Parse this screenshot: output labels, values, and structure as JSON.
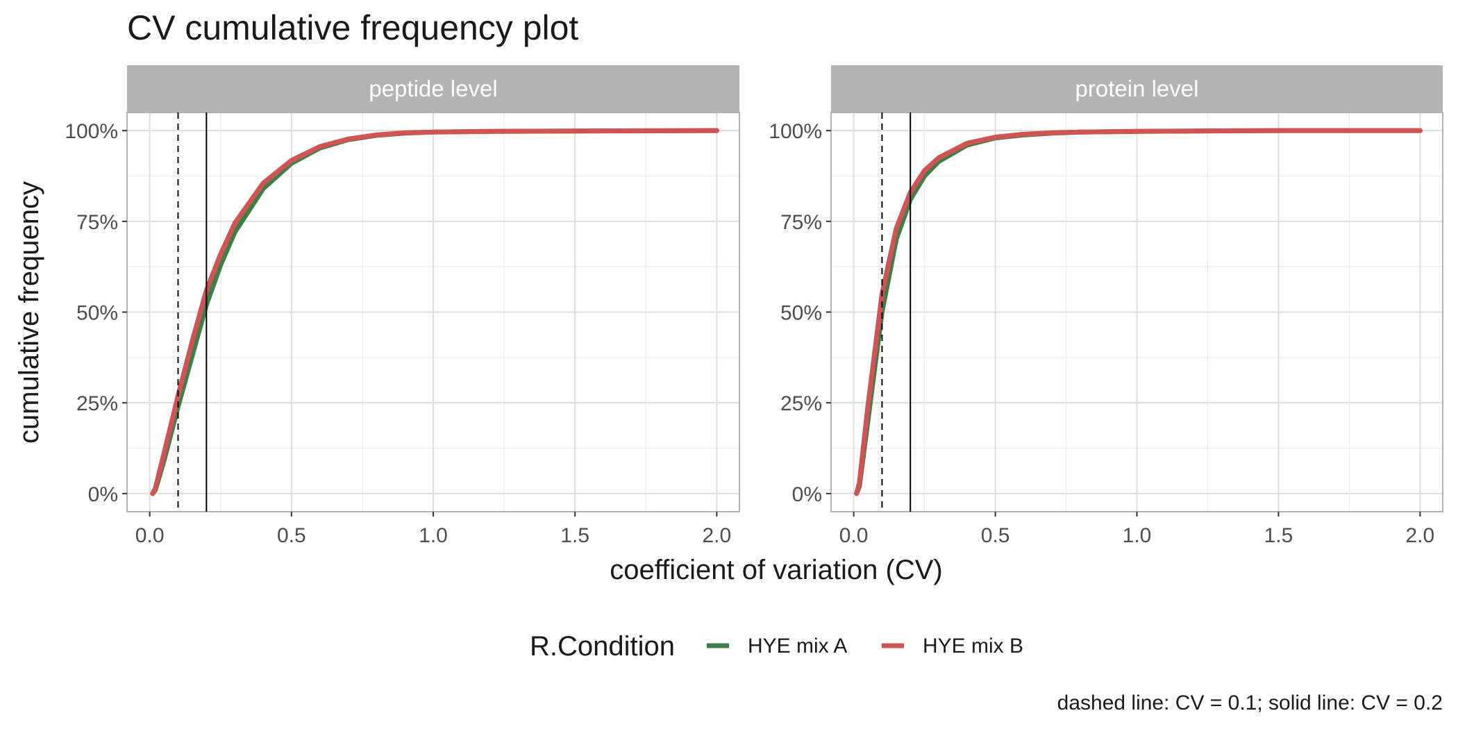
{
  "chart_data": {
    "type": "line",
    "title": "CV cumulative frequency plot",
    "xlabel": "coefficient of variation (CV)",
    "ylabel": "cumulative frequency",
    "caption": "dashed line: CV = 0.1; solid line: CV = 0.2",
    "xlim": [
      -0.08,
      2.08
    ],
    "ylim": [
      -0.05,
      1.05
    ],
    "x_ticks": [
      0.0,
      0.5,
      1.0,
      1.5,
      2.0
    ],
    "x_tick_labels": [
      "0.0",
      "0.5",
      "1.0",
      "1.5",
      "2.0"
    ],
    "y_ticks": [
      0,
      0.25,
      0.5,
      0.75,
      1.0
    ],
    "y_tick_labels": [
      "0%",
      "25%",
      "50%",
      "75%",
      "100%"
    ],
    "grid": true,
    "reference_lines": [
      {
        "x": 0.1,
        "style": "dashed"
      },
      {
        "x": 0.2,
        "style": "solid"
      }
    ],
    "legend": {
      "title": "R.Condition",
      "position": "bottom",
      "entries": [
        {
          "label": "HYE mix A",
          "color": "#3d7f47"
        },
        {
          "label": "HYE mix B",
          "color": "#d05454"
        }
      ]
    },
    "panels": [
      {
        "strip": "peptide level",
        "series": [
          {
            "name": "HYE mix A",
            "color": "#3d7f47",
            "x": [
              0.01,
              0.02,
              0.05,
              0.1,
              0.15,
              0.2,
              0.25,
              0.3,
              0.4,
              0.5,
              0.6,
              0.7,
              0.8,
              0.9,
              1.0,
              1.2,
              1.5,
              2.0
            ],
            "y": [
              0.0,
              0.01,
              0.09,
              0.24,
              0.38,
              0.52,
              0.63,
              0.72,
              0.84,
              0.91,
              0.952,
              0.975,
              0.987,
              0.993,
              0.996,
              0.998,
              0.999,
              1.0
            ]
          },
          {
            "name": "HYE mix B",
            "color": "#d05454",
            "x": [
              0.01,
              0.02,
              0.05,
              0.1,
              0.15,
              0.2,
              0.25,
              0.3,
              0.4,
              0.5,
              0.6,
              0.7,
              0.8,
              0.9,
              1.0,
              1.2,
              1.5,
              2.0
            ],
            "y": [
              0.0,
              0.015,
              0.11,
              0.27,
              0.42,
              0.56,
              0.66,
              0.745,
              0.855,
              0.918,
              0.956,
              0.977,
              0.988,
              0.994,
              0.996,
              0.998,
              0.999,
              1.0
            ]
          }
        ]
      },
      {
        "strip": "protein level",
        "series": [
          {
            "name": "HYE mix A",
            "color": "#3d7f47",
            "x": [
              0.01,
              0.02,
              0.05,
              0.1,
              0.15,
              0.2,
              0.25,
              0.3,
              0.4,
              0.5,
              0.6,
              0.7,
              0.8,
              1.0,
              1.2,
              1.5,
              2.0
            ],
            "y": [
              0.0,
              0.02,
              0.2,
              0.5,
              0.7,
              0.81,
              0.875,
              0.915,
              0.96,
              0.98,
              0.988,
              0.993,
              0.996,
              0.998,
              0.999,
              1.0,
              1.0
            ]
          },
          {
            "name": "HYE mix B",
            "color": "#d05454",
            "x": [
              0.01,
              0.02,
              0.05,
              0.1,
              0.15,
              0.2,
              0.25,
              0.3,
              0.4,
              0.5,
              0.6,
              0.7,
              0.8,
              1.0,
              1.2,
              1.5,
              2.0
            ],
            "y": [
              0.0,
              0.03,
              0.24,
              0.55,
              0.73,
              0.83,
              0.89,
              0.925,
              0.965,
              0.982,
              0.99,
              0.994,
              0.996,
              0.998,
              0.999,
              1.0,
              1.0
            ]
          }
        ]
      }
    ]
  }
}
